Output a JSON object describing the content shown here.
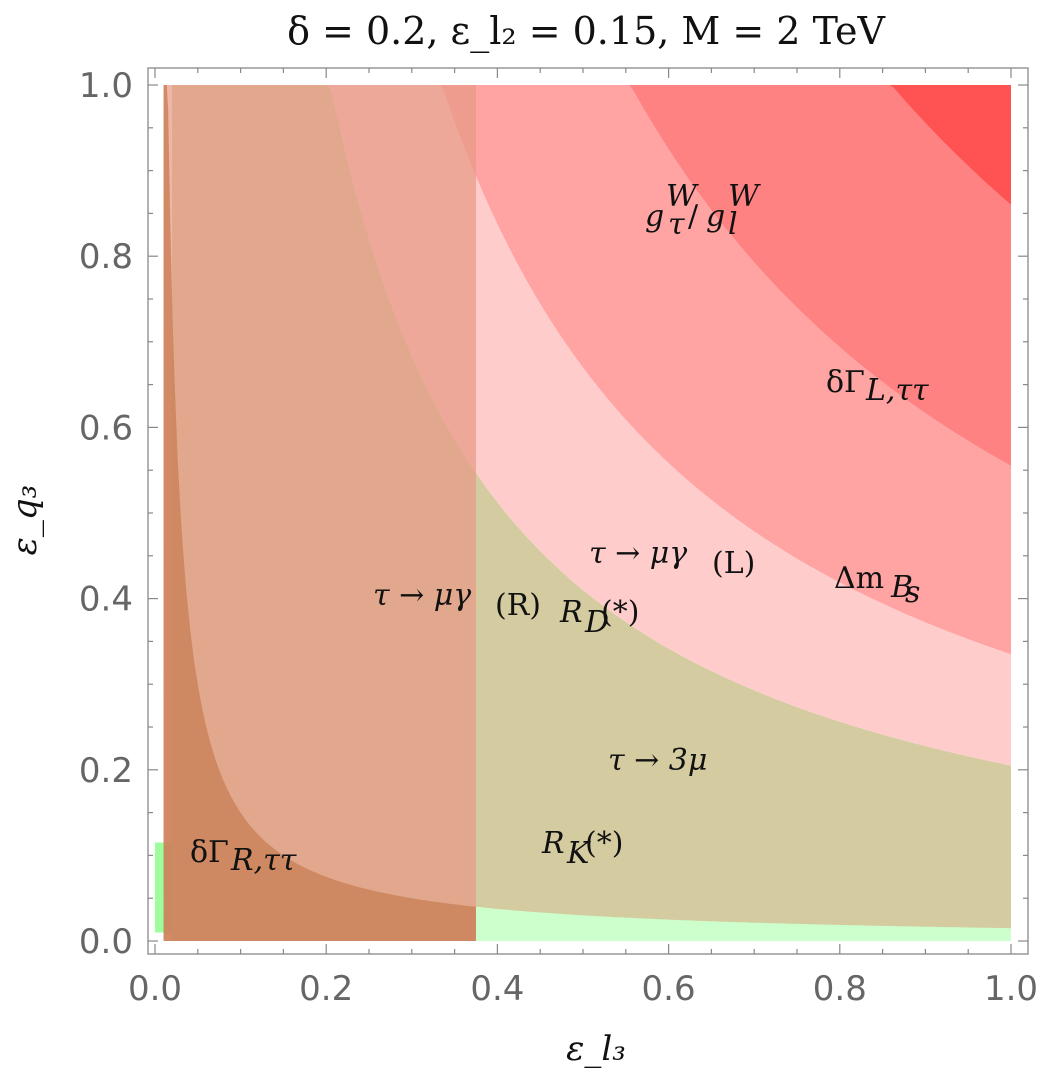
{
  "chart_data": {
    "type": "area",
    "title": "δ = 0.2,  ε_l₂ = 0.15,  M = 2 TeV",
    "xlabel": "ε_l₃",
    "ylabel": "ε_q₃",
    "xlim": [
      0.0,
      1.0
    ],
    "ylim": [
      0.0,
      1.0
    ],
    "x_ticks": [
      "0.0",
      "0.2",
      "0.4",
      "0.6",
      "0.8",
      "1.0"
    ],
    "y_ticks": [
      "0.0",
      "0.2",
      "0.4",
      "0.6",
      "0.8",
      "1.0"
    ],
    "grid": false,
    "regions": [
      {
        "label": "R_K(*)",
        "color": "#9cff9c",
        "kind": "band",
        "y_range": [
          0.01,
          0.115
        ],
        "x_range": [
          0.0,
          1.0
        ]
      },
      {
        "label": "τ → 3μ",
        "color": "#ccffcc",
        "kind": "hyperbola_below",
        "k": 0.185,
        "x_range": [
          0.02,
          1.0
        ]
      },
      {
        "label": "R_D(*)",
        "color": "#d4cba0",
        "kind": "band_between",
        "k_low": 0.015,
        "k_high": 0.205,
        "x_range": [
          0.02,
          1.0
        ]
      },
      {
        "label": "τ → μγ_(L)",
        "color": "#ffcccc",
        "kind": "band_between",
        "k_low": 0.205,
        "k_high": 0.335,
        "x_range": [
          0.02,
          1.0
        ]
      },
      {
        "label": "Δm_Bs",
        "color": "#ffa3a3",
        "kind": "band_between",
        "k_low": 0.335,
        "k_high": 0.555,
        "x_range": [
          0.02,
          1.0
        ]
      },
      {
        "label": "δΓ_L,ττ",
        "color": "#ff8282",
        "kind": "band_between",
        "k_low": 0.555,
        "k_high": 0.86,
        "x_range": [
          0.02,
          1.0
        ]
      },
      {
        "label": "g_τ^W / g_l^W",
        "color": "#ff5252",
        "kind": "hyperbola_above",
        "k": 0.86,
        "x_range": [
          0.02,
          1.0
        ]
      },
      {
        "label": "τ → μγ_(R)",
        "color": "#e89a85",
        "kind": "rect",
        "x_range": [
          0.01,
          0.375
        ],
        "y_range": [
          0.0,
          1.0
        ]
      },
      {
        "label": "δΓ_R,ττ",
        "color": "#c87a50",
        "kind": "hyperbola_below_small",
        "k": 0.015,
        "x_range": [
          0.01,
          0.375
        ]
      }
    ]
  },
  "labels": {
    "g_ratio": "g",
    "dGammaL": "δΓ",
    "deltaMBs": "Δm",
    "tmugL": "τ → μγ",
    "tmugR": "τ → μγ",
    "RD": "R",
    "t3mu": "τ → 3μ",
    "RK": "R",
    "dGammaR": "δΓ"
  }
}
